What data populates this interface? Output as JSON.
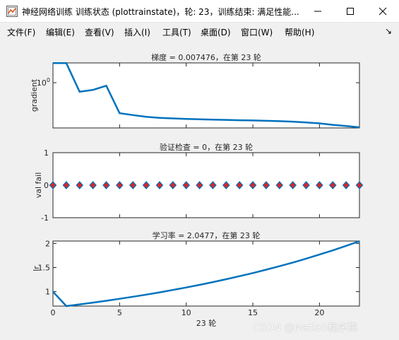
{
  "window": {
    "title": "神经网络训练 训练状态 (plottrainstate)，轮: 23，训练结束: 满足性能...",
    "controls": [
      "minimize",
      "maximize",
      "close"
    ]
  },
  "menu": [
    {
      "label": "文件(F)"
    },
    {
      "label": "编辑(E)"
    },
    {
      "label": "查看(V)"
    },
    {
      "label": "插入(I)"
    },
    {
      "label": "工具(T)"
    },
    {
      "label": "桌面(D)"
    },
    {
      "label": "窗口(W)"
    },
    {
      "label": "帮助(H)"
    }
  ],
  "menu_overflow": "↘",
  "colors": {
    "line": "#0072bd",
    "marker_fill": "#d62728",
    "marker_edge": "#0072bd"
  },
  "xaxis": {
    "label": "23 轮",
    "ticks": [
      "0",
      "5",
      "10",
      "15",
      "20"
    ]
  },
  "chart_data": [
    {
      "type": "line",
      "title": "梯度 = 0.007476，在第 23 轮",
      "ylabel": "gradient",
      "yscale": "log",
      "ytick_labels": [
        "10^0"
      ],
      "xlim": [
        0,
        23
      ],
      "x": [
        0,
        1,
        2,
        3,
        4,
        5,
        6,
        7,
        8,
        9,
        10,
        11,
        12,
        13,
        14,
        15,
        16,
        17,
        18,
        19,
        20,
        21,
        22,
        23
      ],
      "values": [
        4.2,
        4.2,
        0.25,
        0.3,
        0.45,
        0.03,
        0.025,
        0.021,
        0.019,
        0.018,
        0.017,
        0.0165,
        0.016,
        0.0155,
        0.015,
        0.0147,
        0.0142,
        0.0137,
        0.013,
        0.012,
        0.011,
        0.0095,
        0.0085,
        0.007476
      ]
    },
    {
      "type": "scatter",
      "title": "验证检查 = 0，在第 23 轮",
      "ylabel": "val fail",
      "ylim": [
        -1,
        1
      ],
      "ytick_labels": [
        "1",
        "0",
        "-1"
      ],
      "xlim": [
        0,
        23
      ],
      "x": [
        0,
        1,
        2,
        3,
        4,
        5,
        6,
        7,
        8,
        9,
        10,
        11,
        12,
        13,
        14,
        15,
        16,
        17,
        18,
        19,
        20,
        21,
        22,
        23
      ],
      "values": [
        0,
        0,
        0,
        0,
        0,
        0,
        0,
        0,
        0,
        0,
        0,
        0,
        0,
        0,
        0,
        0,
        0,
        0,
        0,
        0,
        0,
        0,
        0,
        0
      ]
    },
    {
      "type": "line",
      "title": "学习率 = 2.0477，在第 23 轮",
      "ylabel": "lr",
      "ylim": [
        0.7,
        2.05
      ],
      "ytick_labels": [
        "2",
        "1.5",
        "1"
      ],
      "xlim": [
        0,
        23
      ],
      "x": [
        0,
        1,
        2,
        3,
        4,
        5,
        6,
        7,
        8,
        9,
        10,
        11,
        12,
        13,
        14,
        15,
        16,
        17,
        18,
        19,
        20,
        21,
        22,
        23
      ],
      "values": [
        1,
        0.7,
        0.735,
        0.772,
        0.81,
        0.851,
        0.893,
        0.938,
        0.985,
        1.034,
        1.086,
        1.14,
        1.197,
        1.257,
        1.32,
        1.386,
        1.455,
        1.528,
        1.604,
        1.684,
        1.769,
        1.857,
        1.95,
        2.0477
      ]
    }
  ],
  "watermark": "CSDN @Matlab程序猿"
}
